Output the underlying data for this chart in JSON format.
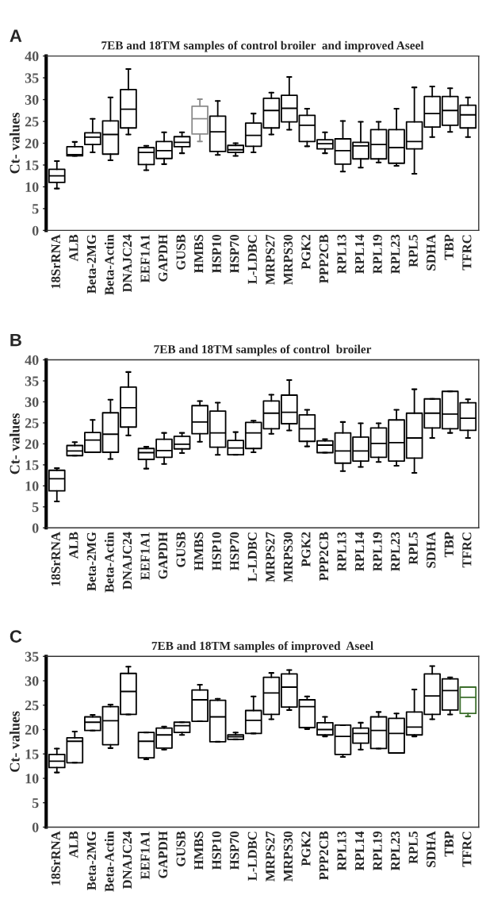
{
  "chart_data": [
    {
      "type": "box",
      "title": "7EB and 18TM samples of control broiler  and improved Aseel",
      "ylabel": "Ct- values",
      "annotations": [
        "A"
      ],
      "categories": [
        "18SrRNA",
        "ALB",
        "Beta-2MG",
        "Beta-Actin",
        "DNAJC24",
        "EEF1A1",
        "GAPDH",
        "GUSB",
        "HMBS",
        "HSP10",
        "HSP70",
        "L-LDBC",
        "MRPS27",
        "MRPS30",
        "PGK2",
        "PPP2CB",
        "RPL13",
        "RPL14",
        "RPL19",
        "RPL23",
        "RPL5",
        "SDHA",
        "TBP",
        "TFRC"
      ],
      "boxes": [
        {
          "low": 9.6,
          "q1": 11.0,
          "median": 12.5,
          "q3": 14.0,
          "high": 15.9
        },
        {
          "low": 17.1,
          "q1": 17.1,
          "median": 17.4,
          "q3": 19.2,
          "high": 20.3
        },
        {
          "low": 17.9,
          "q1": 19.7,
          "median": 21.4,
          "q3": 22.4,
          "high": 25.6
        },
        {
          "low": 16.1,
          "q1": 17.5,
          "median": 22.0,
          "q3": 25.1,
          "high": 30.5
        },
        {
          "low": 22.0,
          "q1": 23.5,
          "median": 27.8,
          "q3": 32.3,
          "high": 37.0
        },
        {
          "low": 13.8,
          "q1": 15.1,
          "median": 17.9,
          "q3": 19.0,
          "high": 19.4
        },
        {
          "low": 15.2,
          "q1": 16.5,
          "median": 18.3,
          "q3": 20.4,
          "high": 22.5
        },
        {
          "low": 17.7,
          "q1": 19.2,
          "median": 20.2,
          "q3": 21.5,
          "high": 22.5
        },
        {
          "low": 20.4,
          "q1": 22.1,
          "median": 25.6,
          "q3": 28.5,
          "high": 30.1
        },
        {
          "low": 17.3,
          "q1": 18.1,
          "median": 22.6,
          "q3": 26.2,
          "high": 29.7
        },
        {
          "low": 17.1,
          "q1": 17.9,
          "median": 18.5,
          "q3": 19.5,
          "high": 20.0
        },
        {
          "low": 17.9,
          "q1": 19.3,
          "median": 21.8,
          "q3": 24.6,
          "high": 26.8
        },
        {
          "low": 22.0,
          "q1": 23.5,
          "median": 27.5,
          "q3": 30.3,
          "high": 31.6
        },
        {
          "low": 23.1,
          "q1": 24.9,
          "median": 28.0,
          "q3": 31.0,
          "high": 35.2
        },
        {
          "low": 19.3,
          "q1": 20.4,
          "median": 24.1,
          "q3": 26.4,
          "high": 27.9
        },
        {
          "low": 17.7,
          "q1": 18.7,
          "median": 19.9,
          "q3": 20.8,
          "high": 22.5
        },
        {
          "low": 13.5,
          "q1": 15.2,
          "median": 18.3,
          "q3": 21.0,
          "high": 25.1
        },
        {
          "low": 14.4,
          "q1": 16.4,
          "median": 19.4,
          "q3": 20.2,
          "high": 24.9
        },
        {
          "low": 15.6,
          "q1": 16.4,
          "median": 19.7,
          "q3": 23.1,
          "high": 24.9
        },
        {
          "low": 14.8,
          "q1": 15.4,
          "median": 19.0,
          "q3": 23.1,
          "high": 27.9
        },
        {
          "low": 13.0,
          "q1": 18.7,
          "median": 20.4,
          "q3": 24.9,
          "high": 32.8
        },
        {
          "low": 21.4,
          "q1": 23.7,
          "median": 26.8,
          "q3": 30.7,
          "high": 33.0
        },
        {
          "low": 22.6,
          "q1": 24.1,
          "median": 27.5,
          "q3": 30.7,
          "high": 32.6
        },
        {
          "low": 21.4,
          "q1": 23.5,
          "median": 26.5,
          "q3": 28.7,
          "high": 30.5
        }
      ],
      "colors": [
        "#000000",
        "#000000",
        "#000000",
        "#000000",
        "#000000",
        "#000000",
        "#000000",
        "#000000",
        "#8c8c8c",
        "#000000",
        "#000000",
        "#000000",
        "#000000",
        "#000000",
        "#000000",
        "#000000",
        "#000000",
        "#000000",
        "#000000",
        "#000000",
        "#000000",
        "#000000",
        "#000000",
        "#000000"
      ],
      "ylim": [
        0,
        40
      ],
      "yticks": [
        0,
        5,
        10,
        15,
        20,
        25,
        30,
        35,
        40
      ]
    },
    {
      "type": "box",
      "title": "7EB and 18TM samples of control  broiler",
      "ylabel": "Ct- values",
      "annotations": [
        "B"
      ],
      "categories": [
        "18SrRNA",
        "ALB",
        "Beta-2MG",
        "Beta-Actin",
        "DNAJC24",
        "EEF1A1",
        "GAPDH",
        "GUSB",
        "HMBS",
        "HSP10",
        "HSP70",
        "L-LDBC",
        "MRPS27",
        "MRPS30",
        "PGK2",
        "PPP2CB",
        "RPL13",
        "RPL14",
        "RPL19",
        "RPL23",
        "RPL5",
        "SDHA",
        "TBP",
        "TFRC"
      ],
      "boxes": [
        {
          "low": 6.3,
          "q1": 8.8,
          "median": 11.7,
          "q3": 13.7,
          "high": 14.2
        },
        {
          "low": 17.2,
          "q1": 17.2,
          "median": 18.3,
          "q3": 19.6,
          "high": 20.4
        },
        {
          "low": 18.0,
          "q1": 18.0,
          "median": 20.9,
          "q3": 22.7,
          "high": 25.7
        },
        {
          "low": 16.4,
          "q1": 18.0,
          "median": 22.3,
          "q3": 27.4,
          "high": 30.5
        },
        {
          "low": 22.0,
          "q1": 24.0,
          "median": 28.6,
          "q3": 33.5,
          "high": 37.1
        },
        {
          "low": 14.1,
          "q1": 16.3,
          "median": 17.9,
          "q3": 18.9,
          "high": 19.3
        },
        {
          "low": 15.2,
          "q1": 16.8,
          "median": 18.4,
          "q3": 21.1,
          "high": 22.6
        },
        {
          "low": 17.8,
          "q1": 18.8,
          "median": 19.9,
          "q3": 21.8,
          "high": 22.6
        },
        {
          "low": 20.5,
          "q1": 22.4,
          "median": 25.2,
          "q3": 29.1,
          "high": 30.2
        },
        {
          "low": 17.4,
          "q1": 19.2,
          "median": 22.6,
          "q3": 27.8,
          "high": 29.8
        },
        {
          "low": 17.4,
          "q1": 17.4,
          "median": 19.0,
          "q3": 20.8,
          "high": 22.8
        },
        {
          "low": 18.0,
          "q1": 18.9,
          "median": 22.6,
          "q3": 25.1,
          "high": 25.5
        },
        {
          "low": 22.4,
          "q1": 23.6,
          "median": 27.3,
          "q3": 30.2,
          "high": 31.7
        },
        {
          "low": 23.2,
          "q1": 24.8,
          "median": 27.5,
          "q3": 31.6,
          "high": 35.2
        },
        {
          "low": 19.4,
          "q1": 20.6,
          "median": 23.6,
          "q3": 26.9,
          "high": 28.1
        },
        {
          "low": 17.9,
          "q1": 17.9,
          "median": 19.7,
          "q3": 20.7,
          "high": 21.1
        },
        {
          "low": 13.5,
          "q1": 15.4,
          "median": 18.3,
          "q3": 22.6,
          "high": 25.2
        },
        {
          "low": 14.5,
          "q1": 15.9,
          "median": 18.3,
          "q3": 21.6,
          "high": 24.9
        },
        {
          "low": 15.7,
          "q1": 16.8,
          "median": 20.1,
          "q3": 23.8,
          "high": 24.9
        },
        {
          "low": 14.8,
          "q1": 15.9,
          "median": 20.3,
          "q3": 25.7,
          "high": 28.1
        },
        {
          "low": 13.1,
          "q1": 16.6,
          "median": 21.4,
          "q3": 27.3,
          "high": 33.0
        },
        {
          "low": 21.4,
          "q1": 23.8,
          "median": 27.3,
          "q3": 30.7,
          "high": 30.7
        },
        {
          "low": 22.6,
          "q1": 23.6,
          "median": 27.1,
          "q3": 32.5,
          "high": 32.5
        },
        {
          "low": 21.4,
          "q1": 23.2,
          "median": 26.1,
          "q3": 29.8,
          "high": 30.6
        }
      ],
      "colors": [
        "#000000",
        "#000000",
        "#000000",
        "#000000",
        "#000000",
        "#000000",
        "#000000",
        "#000000",
        "#000000",
        "#000000",
        "#000000",
        "#000000",
        "#000000",
        "#000000",
        "#000000",
        "#000000",
        "#000000",
        "#000000",
        "#000000",
        "#000000",
        "#000000",
        "#000000",
        "#000000",
        "#000000"
      ],
      "ylim": [
        0,
        40
      ],
      "yticks": [
        0,
        5,
        10,
        15,
        20,
        25,
        30,
        35,
        40
      ]
    },
    {
      "type": "box",
      "title": "7EB and 18TM samples of improved  Aseel",
      "ylabel": "Ct- values",
      "annotations": [
        "C"
      ],
      "categories": [
        "18SrRNA",
        "ALB",
        "Beta-2MG",
        "Beta-Actin",
        "DNAJC24",
        "EEF1A1",
        "GAPDH",
        "GUSB",
        "HMBS",
        "HSP10",
        "HSP70",
        "L-LDBC",
        "MRPS27",
        "MRPS30",
        "PGK2",
        "PPP2CB",
        "RPL13",
        "RPL14",
        "RPL19",
        "RPL23",
        "RPL5",
        "SDHA",
        "TBP",
        "TFRC"
      ],
      "boxes": [
        {
          "low": 11.2,
          "q1": 12.2,
          "median": 13.5,
          "q3": 14.9,
          "high": 16.1
        },
        {
          "low": 13.2,
          "q1": 13.2,
          "median": 17.6,
          "q3": 18.3,
          "high": 19.6
        },
        {
          "low": 19.8,
          "q1": 19.8,
          "median": 21.5,
          "q3": 22.6,
          "high": 23.0
        },
        {
          "low": 16.2,
          "q1": 16.9,
          "median": 21.8,
          "q3": 24.7,
          "high": 25.1
        },
        {
          "low": 23.1,
          "q1": 23.1,
          "median": 27.8,
          "q3": 31.5,
          "high": 32.9
        },
        {
          "low": 13.9,
          "q1": 14.2,
          "median": 17.6,
          "q3": 19.4,
          "high": 19.4
        },
        {
          "low": 15.9,
          "q1": 16.2,
          "median": 18.9,
          "q3": 20.3,
          "high": 20.6
        },
        {
          "low": 18.9,
          "q1": 19.4,
          "median": 20.8,
          "q3": 21.5,
          "high": 21.5
        },
        {
          "low": 21.7,
          "q1": 21.7,
          "median": 26.1,
          "q3": 28.1,
          "high": 29.2
        },
        {
          "low": 17.5,
          "q1": 17.5,
          "median": 22.6,
          "q3": 26.0,
          "high": 26.3
        },
        {
          "low": 18.0,
          "q1": 18.0,
          "median": 18.5,
          "q3": 18.9,
          "high": 19.4
        },
        {
          "low": 19.2,
          "q1": 19.2,
          "median": 21.9,
          "q3": 23.9,
          "high": 26.8
        },
        {
          "low": 22.1,
          "q1": 23.1,
          "median": 27.5,
          "q3": 30.7,
          "high": 31.6
        },
        {
          "low": 24.0,
          "q1": 24.6,
          "median": 28.7,
          "q3": 31.4,
          "high": 32.2
        },
        {
          "low": 20.1,
          "q1": 20.4,
          "median": 24.7,
          "q3": 26.1,
          "high": 26.8
        },
        {
          "low": 18.6,
          "q1": 18.9,
          "median": 20.0,
          "q3": 21.4,
          "high": 22.6
        },
        {
          "low": 14.4,
          "q1": 14.9,
          "median": 18.6,
          "q3": 20.9,
          "high": 20.9
        },
        {
          "low": 15.9,
          "q1": 17.2,
          "median": 19.2,
          "q3": 20.3,
          "high": 21.4
        },
        {
          "low": 16.1,
          "q1": 16.1,
          "median": 19.8,
          "q3": 22.6,
          "high": 23.6
        },
        {
          "low": 15.2,
          "q1": 15.2,
          "median": 19.2,
          "q3": 22.3,
          "high": 23.3
        },
        {
          "low": 18.6,
          "q1": 18.9,
          "median": 20.5,
          "q3": 23.6,
          "high": 28.2
        },
        {
          "low": 22.1,
          "q1": 23.1,
          "median": 26.9,
          "q3": 31.4,
          "high": 33.0
        },
        {
          "low": 23.1,
          "q1": 24.0,
          "median": 28.0,
          "q3": 30.4,
          "high": 30.7
        },
        {
          "low": 22.7,
          "q1": 23.3,
          "median": 26.6,
          "q3": 28.7,
          "high": 28.7
        }
      ],
      "colors": [
        "#000000",
        "#000000",
        "#000000",
        "#000000",
        "#000000",
        "#000000",
        "#000000",
        "#000000",
        "#000000",
        "#000000",
        "#000000",
        "#000000",
        "#000000",
        "#000000",
        "#000000",
        "#000000",
        "#000000",
        "#000000",
        "#000000",
        "#000000",
        "#000000",
        "#000000",
        "#000000",
        "#3c6e2c"
      ],
      "ylim": [
        0,
        35
      ],
      "yticks": [
        0,
        5,
        10,
        15,
        20,
        25,
        30,
        35
      ]
    }
  ]
}
